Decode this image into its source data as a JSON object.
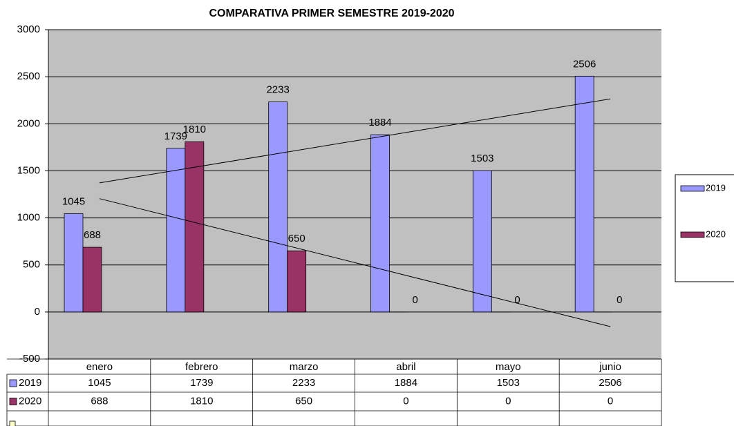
{
  "chart_data": {
    "type": "bar",
    "title": "COMPARATIVA PRIMER SEMESTRE 2019-2020",
    "categories": [
      "enero",
      "febrero",
      "marzo",
      "abril",
      "mayo",
      "junio"
    ],
    "series": [
      {
        "name": "2019",
        "color": "#9999ff",
        "values": [
          1045,
          1739,
          2233,
          1884,
          1503,
          2506
        ]
      },
      {
        "name": "2020",
        "color": "#993366",
        "values": [
          688,
          1810,
          650,
          0,
          0,
          0
        ]
      }
    ],
    "ylim": [
      -500,
      3000
    ],
    "yticks": [
      -500,
      0,
      500,
      1000,
      1500,
      2000,
      2500,
      3000
    ],
    "grid": true,
    "trendlines": true,
    "data_table": true,
    "legend": "right"
  }
}
